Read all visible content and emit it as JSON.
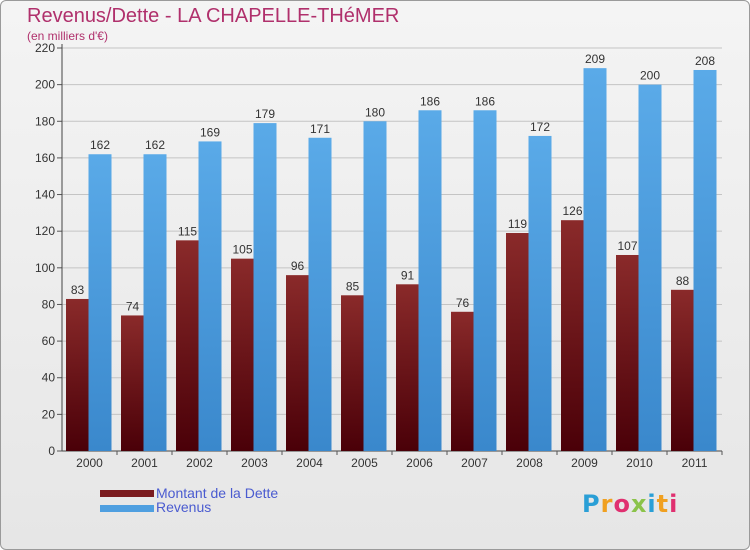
{
  "chart_data": {
    "type": "bar",
    "title": "Revenus/Dette - LA CHAPELLE-THéMER",
    "subtitle": "(en milliers d'€)",
    "categories": [
      "2000",
      "2001",
      "2002",
      "2003",
      "2004",
      "2005",
      "2006",
      "2007",
      "2008",
      "2009",
      "2010",
      "2011"
    ],
    "series": [
      {
        "name": "Montant de la Dette",
        "color": "#7a1a1e",
        "values": [
          83,
          74,
          115,
          105,
          96,
          85,
          91,
          76,
          119,
          126,
          107,
          88
        ]
      },
      {
        "name": "Revenus",
        "color": "#4f9fe0",
        "values": [
          162,
          162,
          169,
          179,
          171,
          180,
          186,
          186,
          172,
          209,
          200,
          208
        ]
      }
    ],
    "ylim": [
      0,
      220
    ],
    "yticks": [
      0,
      20,
      40,
      60,
      80,
      100,
      120,
      140,
      160,
      180,
      200,
      220
    ],
    "grid": true,
    "legend_position": "bottom-left"
  },
  "logo": {
    "text": "Proxiti",
    "colors": [
      "#2a9fd6",
      "#f0a020",
      "#e03070",
      "#8bc34a",
      "#2a9fd6",
      "#f0a020",
      "#e03070"
    ]
  }
}
